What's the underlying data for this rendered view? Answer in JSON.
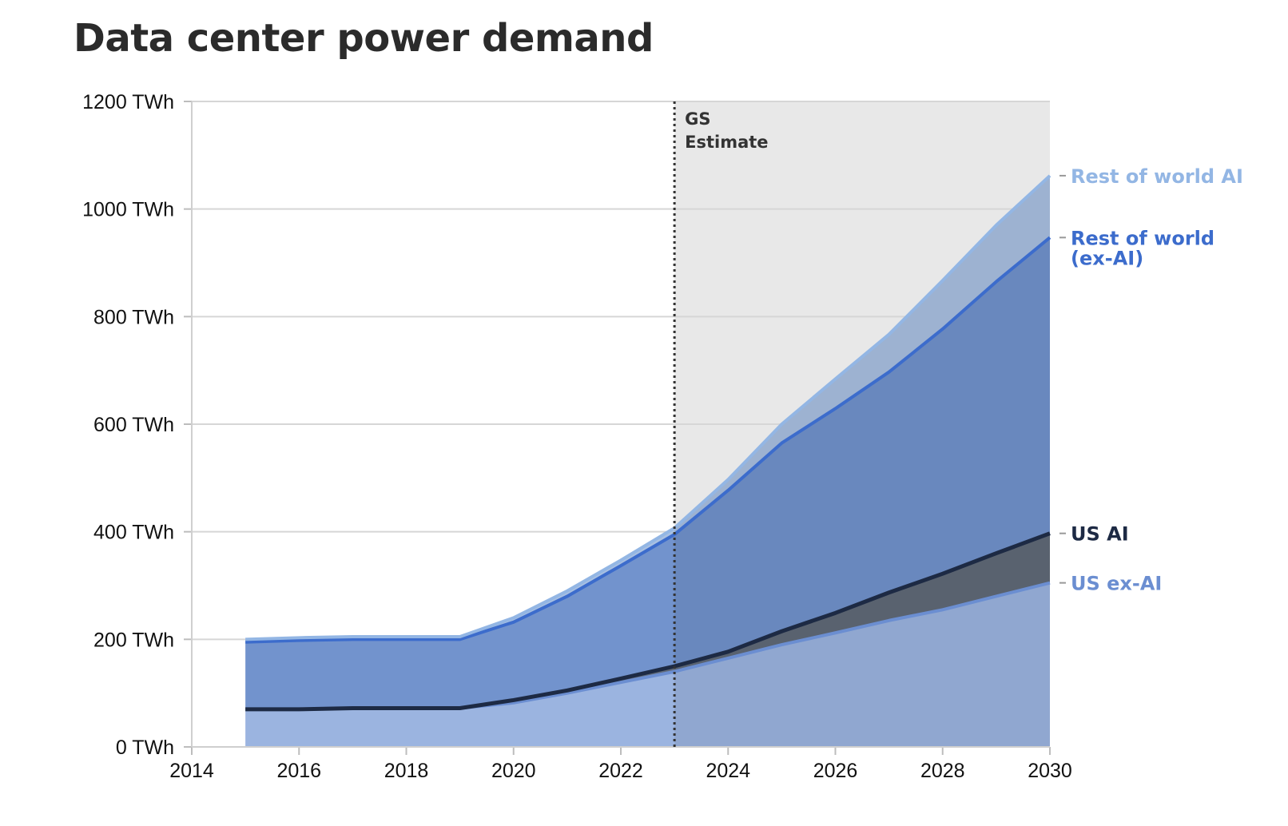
{
  "chart_data": {
    "type": "area",
    "stacked": true,
    "title": "Data center power demand",
    "xlabel": "",
    "ylabel": "",
    "xlim": [
      2014,
      2030
    ],
    "ylim": [
      0,
      1200
    ],
    "y_unit": "TWh",
    "x_ticks": [
      "2014",
      "2016",
      "2018",
      "2020",
      "2022",
      "2024",
      "2026",
      "2028",
      "2030"
    ],
    "y_ticks": [
      "0 TWh",
      "200 TWh",
      "400 TWh",
      "600 TWh",
      "800 TWh",
      "1000 TWh",
      "1200 TWh"
    ],
    "grid": true,
    "x": [
      2015,
      2016,
      2017,
      2018,
      2019,
      2020,
      2021,
      2022,
      2023,
      2024,
      2025,
      2026,
      2027,
      2028,
      2029,
      2030
    ],
    "series": [
      {
        "name": "US ex-AI",
        "color": "#6b8ed1",
        "fill": "#9bb4e0",
        "values": [
          70,
          70,
          72,
          72,
          72,
          82,
          100,
          120,
          140,
          165,
          190,
          212,
          235,
          255,
          280,
          305
        ]
      },
      {
        "name": "US AI",
        "color": "#1d2a44",
        "fill": "#606a78",
        "values": [
          0,
          0,
          0,
          0,
          0,
          5,
          5,
          7,
          10,
          12,
          25,
          37,
          52,
          67,
          80,
          92
        ]
      },
      {
        "name": "Rest of world\n(ex-AI)",
        "color": "#3c6ccc",
        "fill": "#7293cd",
        "values": [
          125,
          128,
          128,
          128,
          128,
          145,
          175,
          210,
          245,
          300,
          350,
          380,
          410,
          455,
          505,
          550
        ]
      },
      {
        "name": "Rest of world AI",
        "color": "#93b6e4",
        "fill": "#a9c0e1",
        "values": [
          5,
          5,
          5,
          5,
          5,
          8,
          10,
          10,
          12,
          20,
          35,
          55,
          70,
          90,
          105,
          115
        ]
      }
    ],
    "forecast_marker": {
      "x": 2023,
      "label_line1": "GS",
      "label_line2": "Estimate",
      "shaded_region": [
        2023,
        2030
      ]
    },
    "legend": "right-end labels"
  }
}
